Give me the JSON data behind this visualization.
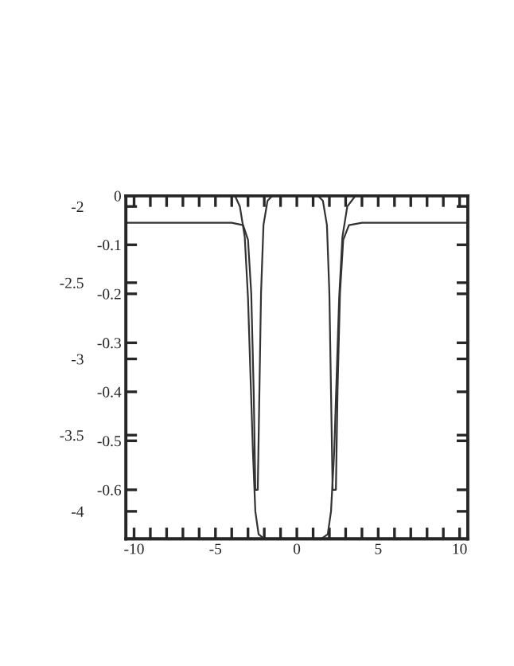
{
  "chart_data": {
    "type": "line",
    "xlim": [
      -10.5,
      10.5
    ],
    "xticks": [
      -10,
      {
        "value": -9,
        "label": null
      },
      {
        "value": -8,
        "label": null
      },
      {
        "value": -7,
        "label": null
      },
      {
        "value": -6,
        "label": null
      },
      -5,
      {
        "value": -4,
        "label": null
      },
      {
        "value": -3,
        "label": null
      },
      {
        "value": -2,
        "label": null
      },
      {
        "value": -1,
        "label": null
      },
      0,
      {
        "value": 1,
        "label": null
      },
      {
        "value": 2,
        "label": null
      },
      {
        "value": 3,
        "label": null
      },
      {
        "value": 4,
        "label": null
      },
      5,
      {
        "value": 6,
        "label": null
      },
      {
        "value": 7,
        "label": null
      },
      {
        "value": 8,
        "label": null
      },
      {
        "value": 9,
        "label": null
      },
      10
    ],
    "ylim": [
      -0.7,
      0
    ],
    "yticks": [
      0,
      -0.1,
      -0.2,
      -0.3,
      -0.4,
      -0.5,
      -0.6
    ],
    "y2lim": [
      -4.18,
      -1.93
    ],
    "y2ticks": [
      -2,
      -2.5,
      -3,
      -3.5,
      -4
    ],
    "grid": false,
    "legend": false,
    "line_style": "solid",
    "marker": "none",
    "series": [
      {
        "color": "#333333",
        "x": [
          -10.5,
          -4,
          -3.3,
          -3.0,
          -2.8,
          -2.65,
          -2.55,
          -2.5,
          -2.4,
          -2.3,
          -2.2,
          -2.05,
          -1.8,
          -1.5,
          1.3,
          1.6,
          1.85,
          2.0,
          2.1,
          2.2,
          2.3,
          2.4,
          2.5,
          2.65,
          2.85,
          3.2,
          4,
          10.5
        ],
        "values": [
          -0.055,
          -0.055,
          -0.06,
          -0.09,
          -0.2,
          -0.4,
          -0.6,
          null,
          -0.6,
          -0.4,
          -0.2,
          -0.06,
          -0.01,
          0,
          0,
          -0.01,
          -0.06,
          -0.2,
          -0.4,
          -0.6,
          null,
          -0.6,
          -0.4,
          -0.2,
          -0.09,
          -0.06,
          -0.055,
          -0.055
        ]
      },
      {
        "color": "#333333",
        "axis": "y2",
        "x": [
          -10.5,
          -3.8,
          -3.5,
          -3.2,
          -3.0,
          -2.85,
          -2.7,
          -2.55,
          -2.35,
          -2.0,
          1.5,
          1.9,
          2.1,
          2.3,
          2.45,
          2.6,
          2.8,
          3.1,
          3.6,
          10.5
        ],
        "values": [
          -1.93,
          -1.93,
          -2.0,
          -2.2,
          -2.6,
          -3.1,
          -3.6,
          -4.0,
          -4.15,
          -4.18,
          -4.18,
          -4.15,
          -4.0,
          -3.6,
          -3.1,
          -2.6,
          -2.2,
          -2.0,
          -1.93,
          -1.93
        ]
      }
    ]
  }
}
